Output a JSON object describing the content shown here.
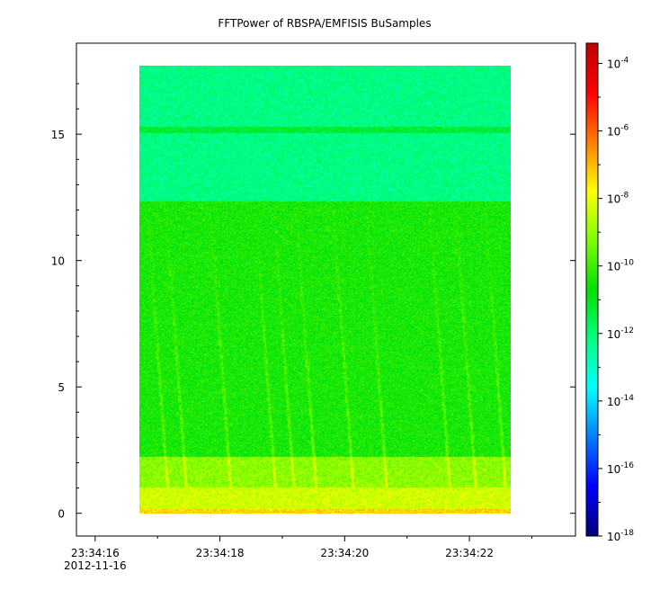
{
  "chart_data": {
    "type": "heatmap",
    "title": "FFTPower of RBSPA/EMFISIS  BuSamples",
    "xlabel": "",
    "ylabel": "",
    "x_ticks": [
      {
        "time": "23:34:16",
        "date": "2012-11-16"
      },
      {
        "time": "23:34:18"
      },
      {
        "time": "23:34:20"
      },
      {
        "time": "23:34:22"
      }
    ],
    "x_range_seconds": [
      -0.3,
      7.7
    ],
    "x_data_range_seconds": [
      0.95,
      6.95
    ],
    "y_ticks": [
      "0",
      "5",
      "10",
      "15"
    ],
    "ylim": [
      -0.9,
      18.6
    ],
    "y_data_range": [
      0,
      17.5
    ],
    "colorbar": {
      "scale": "log",
      "range_exponents": [
        -18,
        -3.4
      ],
      "tick_exponents": [
        -18,
        -16,
        -14,
        -12,
        -10,
        -8,
        -6,
        -4
      ],
      "tick_labels": [
        "10",
        "10",
        "10",
        "10",
        "10",
        "10",
        "10",
        "10"
      ],
      "tick_exponent_labels": [
        "-18",
        "-16",
        "-14",
        "-12",
        "-10",
        "-8",
        "-6",
        "-4"
      ],
      "colormap": [
        "#00007f",
        "#0000ff",
        "#007fff",
        "#00ffff",
        "#00ff7f",
        "#00e000",
        "#7fff00",
        "#ffff00",
        "#ff7f00",
        "#ff0000",
        "#c00000"
      ]
    },
    "bands": [
      {
        "y_from": 0,
        "y_to": 0.15,
        "log_power": -7.3
      },
      {
        "y_from": 0.15,
        "y_to": 1.0,
        "log_power": -8.3
      },
      {
        "y_from": 1.0,
        "y_to": 2.2,
        "log_power": -9.1
      },
      {
        "y_from": 2.2,
        "y_to": 12.2,
        "log_power": -10.5
      },
      {
        "y_from": 12.2,
        "y_to": 17.5,
        "log_power": -12.2
      }
    ],
    "line_at_y": 15
  }
}
